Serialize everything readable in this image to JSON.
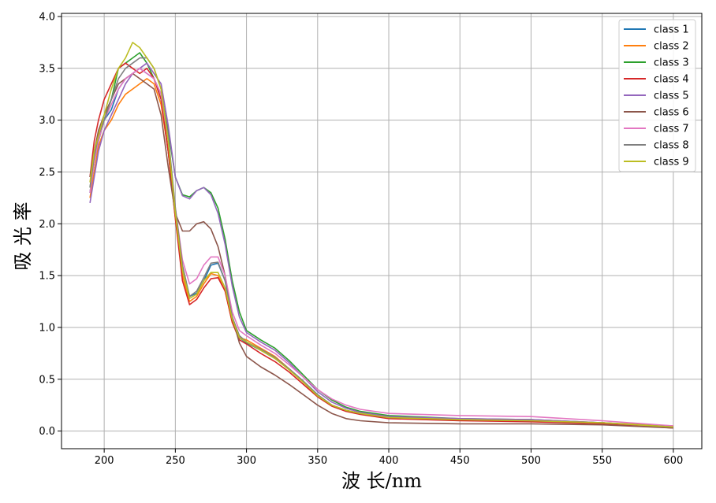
{
  "chart_data": {
    "type": "line",
    "title": "",
    "xlabel": "波 长/nm",
    "ylabel": "吸 光 率",
    "xlim": [
      170,
      620
    ],
    "ylim": [
      -0.17,
      4.03
    ],
    "xticks": [
      200,
      250,
      300,
      350,
      400,
      450,
      500,
      550,
      600
    ],
    "yticks": [
      0.0,
      0.5,
      1.0,
      1.5,
      2.0,
      2.5,
      3.0,
      3.5,
      4.0
    ],
    "xtick_labels": [
      "200",
      "250",
      "300",
      "350",
      "400",
      "450",
      "500",
      "550",
      "600"
    ],
    "ytick_labels": [
      "0.0",
      "0.5",
      "1.0",
      "1.5",
      "2.0",
      "2.5",
      "3.0",
      "3.5",
      "4.0"
    ],
    "grid": true,
    "legend_position": "top-right",
    "series": [
      {
        "name": "class 1",
        "color": "#1f77b4",
        "x": [
          190,
          193,
          196,
          200,
          205,
          210,
          215,
          220,
          225,
          230,
          235,
          240,
          245,
          250,
          255,
          260,
          265,
          270,
          275,
          280,
          285,
          290,
          295,
          300,
          310,
          320,
          330,
          340,
          350,
          360,
          370,
          380,
          400,
          450,
          500,
          550,
          600
        ],
        "y": [
          2.3,
          2.6,
          2.8,
          3.0,
          3.1,
          3.3,
          3.4,
          3.45,
          3.5,
          3.45,
          3.4,
          3.2,
          2.7,
          2.1,
          1.55,
          1.3,
          1.33,
          1.45,
          1.6,
          1.62,
          1.45,
          1.1,
          0.9,
          0.85,
          0.78,
          0.7,
          0.6,
          0.48,
          0.35,
          0.25,
          0.2,
          0.17,
          0.13,
          0.11,
          0.1,
          0.08,
          0.04
        ]
      },
      {
        "name": "class 2",
        "color": "#ff7f0e",
        "x": [
          190,
          193,
          196,
          200,
          205,
          210,
          215,
          220,
          225,
          230,
          235,
          240,
          245,
          250,
          255,
          260,
          265,
          270,
          275,
          280,
          285,
          290,
          295,
          300,
          310,
          320,
          330,
          340,
          350,
          360,
          370,
          380,
          400,
          450,
          500,
          550,
          600
        ],
        "y": [
          2.25,
          2.5,
          2.75,
          2.9,
          3.0,
          3.15,
          3.25,
          3.3,
          3.35,
          3.4,
          3.35,
          3.15,
          2.7,
          2.05,
          1.5,
          1.25,
          1.3,
          1.42,
          1.52,
          1.5,
          1.35,
          1.05,
          0.9,
          0.88,
          0.8,
          0.72,
          0.6,
          0.47,
          0.34,
          0.25,
          0.2,
          0.17,
          0.13,
          0.11,
          0.1,
          0.08,
          0.05
        ]
      },
      {
        "name": "class 3",
        "color": "#2ca02c",
        "x": [
          190,
          193,
          196,
          200,
          205,
          210,
          215,
          220,
          225,
          230,
          235,
          240,
          245,
          250,
          255,
          260,
          265,
          270,
          275,
          280,
          285,
          290,
          295,
          300,
          310,
          320,
          330,
          340,
          350,
          360,
          370,
          380,
          400,
          450,
          500,
          550,
          600
        ],
        "y": [
          2.35,
          2.6,
          2.8,
          3.0,
          3.2,
          3.5,
          3.55,
          3.6,
          3.65,
          3.55,
          3.4,
          3.25,
          2.9,
          2.45,
          2.28,
          2.26,
          2.32,
          2.35,
          2.3,
          2.15,
          1.85,
          1.45,
          1.15,
          0.97,
          0.88,
          0.8,
          0.68,
          0.54,
          0.4,
          0.3,
          0.23,
          0.19,
          0.15,
          0.12,
          0.11,
          0.08,
          0.04
        ]
      },
      {
        "name": "class 4",
        "color": "#d62728",
        "x": [
          190,
          193,
          196,
          200,
          205,
          210,
          215,
          220,
          225,
          230,
          235,
          240,
          245,
          250,
          255,
          260,
          265,
          270,
          275,
          280,
          285,
          290,
          295,
          300,
          310,
          320,
          330,
          340,
          350,
          360,
          370,
          380,
          400,
          450,
          500,
          550,
          600
        ],
        "y": [
          2.45,
          2.8,
          3.0,
          3.2,
          3.35,
          3.5,
          3.55,
          3.5,
          3.45,
          3.5,
          3.4,
          3.2,
          2.7,
          2.05,
          1.45,
          1.22,
          1.27,
          1.38,
          1.47,
          1.48,
          1.35,
          1.05,
          0.88,
          0.84,
          0.75,
          0.67,
          0.57,
          0.45,
          0.33,
          0.24,
          0.19,
          0.16,
          0.12,
          0.1,
          0.09,
          0.07,
          0.03
        ]
      },
      {
        "name": "class 5",
        "color": "#9467bd",
        "x": [
          190,
          193,
          196,
          200,
          205,
          210,
          215,
          220,
          225,
          230,
          235,
          240,
          245,
          250,
          255,
          260,
          265,
          270,
          275,
          280,
          285,
          290,
          295,
          300,
          310,
          320,
          330,
          340,
          350,
          360,
          370,
          380,
          400,
          450,
          500,
          550,
          600
        ],
        "y": [
          2.2,
          2.45,
          2.7,
          2.9,
          3.05,
          3.2,
          3.35,
          3.45,
          3.5,
          3.55,
          3.45,
          3.35,
          2.95,
          2.45,
          2.27,
          2.24,
          2.32,
          2.35,
          2.28,
          2.1,
          1.8,
          1.4,
          1.1,
          0.95,
          0.86,
          0.78,
          0.66,
          0.52,
          0.38,
          0.28,
          0.22,
          0.18,
          0.14,
          0.12,
          0.11,
          0.08,
          0.04
        ]
      },
      {
        "name": "class 6",
        "color": "#8c564b",
        "x": [
          190,
          193,
          196,
          200,
          205,
          210,
          215,
          220,
          225,
          230,
          235,
          240,
          245,
          250,
          255,
          260,
          265,
          270,
          275,
          280,
          285,
          290,
          295,
          300,
          310,
          320,
          330,
          340,
          350,
          360,
          370,
          380,
          400,
          450,
          500,
          550,
          600
        ],
        "y": [
          2.45,
          2.7,
          2.9,
          3.05,
          3.2,
          3.35,
          3.4,
          3.45,
          3.4,
          3.35,
          3.3,
          3.05,
          2.55,
          2.1,
          1.93,
          1.93,
          2.0,
          2.02,
          1.95,
          1.78,
          1.5,
          1.1,
          0.85,
          0.72,
          0.62,
          0.54,
          0.45,
          0.35,
          0.25,
          0.17,
          0.12,
          0.1,
          0.08,
          0.07,
          0.07,
          0.06,
          0.03
        ]
      },
      {
        "name": "class 7",
        "color": "#e377c2",
        "x": [
          190,
          193,
          196,
          200,
          205,
          210,
          215,
          220,
          225,
          230,
          235,
          240,
          245,
          250,
          255,
          260,
          265,
          270,
          275,
          280,
          285,
          290,
          295,
          300,
          310,
          320,
          330,
          340,
          350,
          360,
          370,
          380,
          400,
          450,
          500,
          550,
          600
        ],
        "y": [
          2.3,
          2.6,
          2.8,
          3.0,
          3.15,
          3.3,
          3.4,
          3.45,
          3.5,
          3.45,
          3.4,
          3.25,
          2.8,
          2.15,
          1.65,
          1.42,
          1.47,
          1.6,
          1.68,
          1.68,
          1.5,
          1.15,
          0.97,
          0.92,
          0.83,
          0.75,
          0.64,
          0.52,
          0.4,
          0.31,
          0.25,
          0.21,
          0.17,
          0.15,
          0.14,
          0.1,
          0.05
        ]
      },
      {
        "name": "class 8",
        "color": "#7f7f7f",
        "x": [
          190,
          193,
          196,
          200,
          205,
          210,
          215,
          220,
          225,
          230,
          235,
          240,
          245,
          250,
          255,
          260,
          265,
          270,
          275,
          280,
          285,
          290,
          295,
          300,
          310,
          320,
          330,
          340,
          350,
          360,
          370,
          380,
          400,
          450,
          500,
          550,
          600
        ],
        "y": [
          2.35,
          2.65,
          2.85,
          3.0,
          3.2,
          3.4,
          3.5,
          3.55,
          3.6,
          3.6,
          3.5,
          3.3,
          2.85,
          2.15,
          1.6,
          1.3,
          1.35,
          1.48,
          1.62,
          1.63,
          1.45,
          1.1,
          0.92,
          0.86,
          0.79,
          0.71,
          0.6,
          0.48,
          0.35,
          0.25,
          0.2,
          0.17,
          0.13,
          0.11,
          0.1,
          0.08,
          0.04
        ]
      },
      {
        "name": "class 9",
        "color": "#bcbd22",
        "x": [
          190,
          193,
          196,
          200,
          205,
          210,
          215,
          220,
          225,
          230,
          235,
          240,
          245,
          250,
          255,
          260,
          265,
          270,
          275,
          280,
          285,
          290,
          295,
          300,
          310,
          320,
          330,
          340,
          350,
          360,
          370,
          380,
          400,
          450,
          500,
          550,
          600
        ],
        "y": [
          2.4,
          2.7,
          2.85,
          3.05,
          3.3,
          3.5,
          3.6,
          3.75,
          3.7,
          3.6,
          3.5,
          3.3,
          2.8,
          2.1,
          1.55,
          1.28,
          1.32,
          1.45,
          1.53,
          1.53,
          1.38,
          1.08,
          0.9,
          0.86,
          0.78,
          0.7,
          0.59,
          0.47,
          0.34,
          0.25,
          0.2,
          0.17,
          0.13,
          0.11,
          0.1,
          0.08,
          0.04
        ]
      }
    ]
  }
}
